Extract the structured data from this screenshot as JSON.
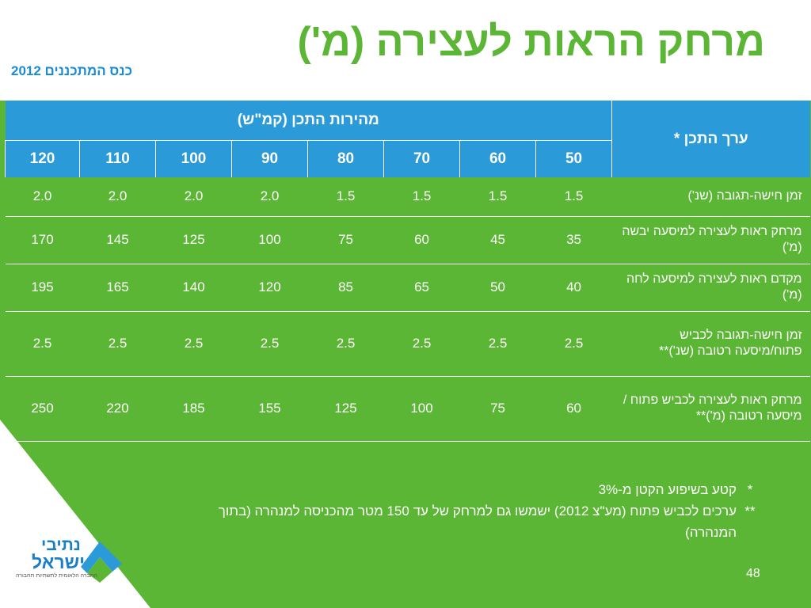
{
  "title": "מרחק הראות לעצירה (מ')",
  "subtitle": "כנס המתכננים 2012",
  "table": {
    "value_header": "ערך התכן *",
    "speed_header": "מהירות התכן (קמ\"ש)",
    "speeds": [
      "50",
      "60",
      "70",
      "80",
      "90",
      "100",
      "110",
      "120"
    ],
    "rows": [
      {
        "label": "זמן חישה-תגובה (שנ')",
        "values": [
          "1.5",
          "1.5",
          "1.5",
          "1.5",
          "2.0",
          "2.0",
          "2.0",
          "2.0"
        ]
      },
      {
        "label": "מרחק ראות לעצירה למיסעה יבשה (מ')",
        "values": [
          "35",
          "45",
          "60",
          "75",
          "100",
          "125",
          "145",
          "170"
        ]
      },
      {
        "label": "מקדם ראות לעצירה למיסעה לחה (מ')",
        "values": [
          "40",
          "50",
          "65",
          "85",
          "120",
          "140",
          "165",
          "195"
        ]
      },
      {
        "label": "זמן חישה-תגובה לכביש פתוח/מיסעה רטובה (שנ')**",
        "values": [
          "2.5",
          "2.5",
          "2.5",
          "2.5",
          "2.5",
          "2.5",
          "2.5",
          "2.5"
        ]
      },
      {
        "label": "מרחק ראות לעצירה לכביש פתוח / מיסעה רטובה (מ')**",
        "values": [
          "60",
          "75",
          "100",
          "125",
          "155",
          "185",
          "220",
          "250"
        ]
      }
    ]
  },
  "notes": [
    {
      "mark": "*",
      "text": "קטע בשיפוע הקטן מ-3%"
    },
    {
      "mark": "**",
      "text": "ערכים לכביש פתוח (מע\"צ 2012) ישמשו גם למרחק של עד 150 מטר מהכניסה למנהרה (בתוך המנהרה)"
    }
  ],
  "page_number": "48",
  "logo": {
    "name_line1": "נתיבי",
    "name_line2": "ישראל",
    "tagline": "החברה הלאומית לתשתיות תחבורה"
  },
  "colors": {
    "green": "#5cb635",
    "blue": "#2b9ad8",
    "title_green": "#5cb635",
    "subtitle_blue": "#1b8bd4"
  }
}
